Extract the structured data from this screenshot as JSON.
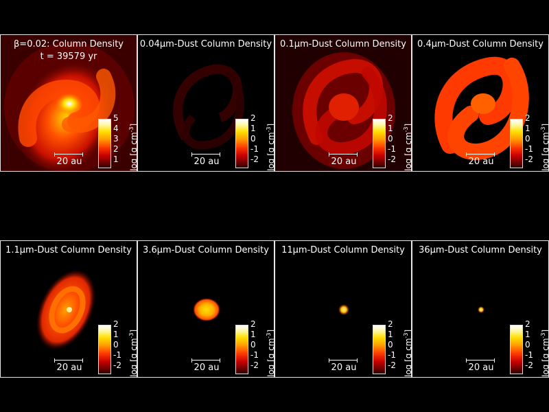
{
  "panels": [
    {
      "title": "β=0.02: Column Density",
      "time": "t = 39579 yr",
      "scale": "20 au",
      "ticks": [
        "5",
        "4",
        "3",
        "2",
        "1"
      ],
      "unit": "log [g cm",
      "unit_sup": "-3",
      "unit_close": "]"
    },
    {
      "title": "0.04μm-Dust Column Density",
      "scale": "20 au",
      "ticks": [
        "2",
        "1",
        "0",
        "-1",
        "-2"
      ],
      "unit": "log [g cm",
      "unit_sup": "-3",
      "unit_close": "]"
    },
    {
      "title": "0.1μm-Dust Column Density",
      "scale": "20 au",
      "ticks": [
        "2",
        "1",
        "0",
        "-1",
        "-2"
      ],
      "unit": "log [g cm",
      "unit_sup": "-3",
      "unit_close": "]"
    },
    {
      "title": "0.4μm-Dust Column Density",
      "scale": "20 au",
      "ticks": [
        "2",
        "1",
        "0",
        "-1",
        "-2"
      ],
      "unit": "log [g cm",
      "unit_sup": "-3",
      "unit_close": "]"
    },
    {
      "title": "1.1μm-Dust Column Density",
      "scale": "20 au",
      "ticks": [
        "2",
        "1",
        "0",
        "-1",
        "-2"
      ],
      "unit": "log [g cm",
      "unit_sup": "-3",
      "unit_close": "]"
    },
    {
      "title": "3.6μm-Dust Column Density",
      "scale": "20 au",
      "ticks": [
        "2",
        "1",
        "0",
        "-1",
        "-2"
      ],
      "unit": "log [g cm",
      "unit_sup": "-3",
      "unit_close": "]"
    },
    {
      "title": "11μm-Dust Column Density",
      "scale": "20 au",
      "ticks": [
        "2",
        "1",
        "0",
        "-1",
        "-2"
      ],
      "unit": "log [g cm",
      "unit_sup": "-3",
      "unit_close": "]"
    },
    {
      "title": "36μm-Dust Column Density",
      "scale": "20 au",
      "ticks": [
        "2",
        "1",
        "0",
        "-1",
        "-2"
      ],
      "unit": "log [g cm",
      "unit_sup": "-3",
      "unit_close": "]"
    }
  ]
}
